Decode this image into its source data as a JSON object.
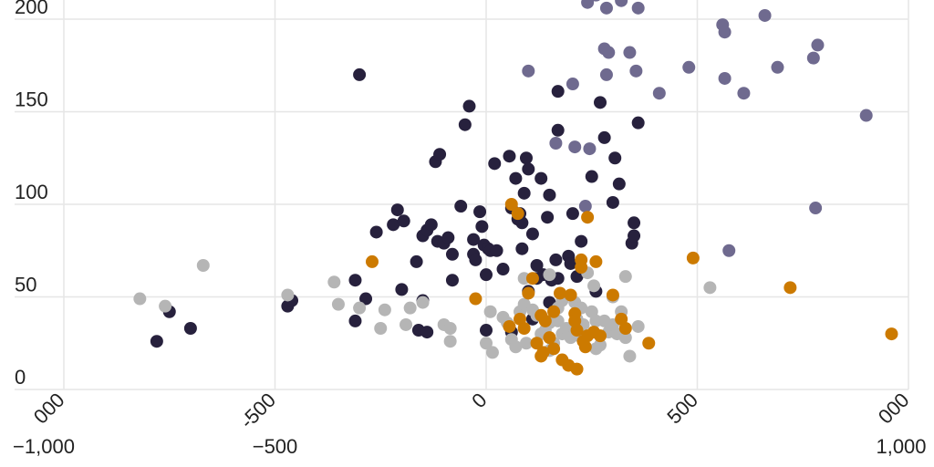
{
  "chart_data": {
    "type": "scatter",
    "title": "",
    "xlabel": "",
    "ylabel": "",
    "xlim": [
      -1000,
      1000
    ],
    "ylim": [
      0,
      205
    ],
    "grid": true,
    "legend": null,
    "x_ticks": [
      -1000,
      -500,
      0,
      500,
      1000
    ],
    "x_tick_labels": [
      "−1,000",
      "−500",
      "0",
      "500",
      "1,000"
    ],
    "x_tick_labels_rotated": [
      "000",
      "-500",
      "0",
      "500",
      "000"
    ],
    "y_ticks": [
      0,
      50,
      100,
      150,
      200
    ],
    "y_tick_labels": [
      "0",
      "50",
      "100",
      "150",
      "200"
    ],
    "series": [
      {
        "name": "series-navy",
        "color": "#27213d",
        "points": [
          [
            -300,
            170
          ],
          [
            -780,
            26
          ],
          [
            -750,
            42
          ],
          [
            -700,
            33
          ],
          [
            -470,
            45
          ],
          [
            -460,
            48
          ],
          [
            -310,
            59
          ],
          [
            -310,
            37
          ],
          [
            -285,
            49
          ],
          [
            -260,
            85
          ],
          [
            -220,
            89
          ],
          [
            -210,
            97
          ],
          [
            -195,
            91
          ],
          [
            -200,
            54
          ],
          [
            -165,
            69
          ],
          [
            -150,
            83
          ],
          [
            -140,
            86
          ],
          [
            -130,
            89
          ],
          [
            -160,
            32
          ],
          [
            -140,
            31
          ],
          [
            -150,
            48
          ],
          [
            -120,
            123
          ],
          [
            -110,
            127
          ],
          [
            -115,
            80
          ],
          [
            -100,
            79
          ],
          [
            -90,
            82
          ],
          [
            -80,
            73
          ],
          [
            -80,
            59
          ],
          [
            -60,
            99
          ],
          [
            -50,
            143
          ],
          [
            -40,
            153
          ],
          [
            -30,
            81
          ],
          [
            -30,
            73
          ],
          [
            -25,
            70
          ],
          [
            -15,
            96
          ],
          [
            -10,
            88
          ],
          [
            -5,
            78
          ],
          [
            0,
            62
          ],
          [
            5,
            76
          ],
          [
            10,
            75
          ],
          [
            20,
            122
          ],
          [
            25,
            75
          ],
          [
            40,
            65
          ],
          [
            55,
            126
          ],
          [
            60,
            98
          ],
          [
            70,
            114
          ],
          [
            75,
            92
          ],
          [
            80,
            95
          ],
          [
            85,
            90
          ],
          [
            85,
            76
          ],
          [
            90,
            106
          ],
          [
            95,
            125
          ],
          [
            100,
            119
          ],
          [
            110,
            84
          ],
          [
            120,
            60
          ],
          [
            130,
            114
          ],
          [
            120,
            67
          ],
          [
            135,
            62
          ],
          [
            145,
            93
          ],
          [
            150,
            105
          ],
          [
            155,
            59
          ],
          [
            165,
            70
          ],
          [
            170,
            60
          ],
          [
            170,
            161
          ],
          [
            170,
            140
          ],
          [
            195,
            72
          ],
          [
            200,
            68
          ],
          [
            205,
            95
          ],
          [
            215,
            61
          ],
          [
            225,
            80
          ],
          [
            250,
            115
          ],
          [
            260,
            53
          ],
          [
            270,
            155
          ],
          [
            280,
            136
          ],
          [
            300,
            101
          ],
          [
            305,
            125
          ],
          [
            315,
            111
          ],
          [
            350,
            90
          ],
          [
            345,
            79
          ],
          [
            350,
            83
          ],
          [
            360,
            144
          ],
          [
            60,
            31
          ],
          [
            110,
            38
          ],
          [
            150,
            47
          ],
          [
            0,
            32
          ],
          [
            100,
            53
          ]
        ]
      },
      {
        "name": "series-purple",
        "color": "#6f6a8f",
        "points": [
          [
            240,
            209
          ],
          [
            260,
            213
          ],
          [
            285,
            206
          ],
          [
            320,
            210
          ],
          [
            360,
            206
          ],
          [
            100,
            172
          ],
          [
            205,
            165
          ],
          [
            280,
            184
          ],
          [
            290,
            182
          ],
          [
            340,
            182
          ],
          [
            355,
            172
          ],
          [
            285,
            170
          ],
          [
            410,
            160
          ],
          [
            480,
            174
          ],
          [
            560,
            197
          ],
          [
            565,
            193
          ],
          [
            610,
            160
          ],
          [
            565,
            168
          ],
          [
            660,
            202
          ],
          [
            690,
            174
          ],
          [
            775,
            179
          ],
          [
            785,
            186
          ],
          [
            900,
            148
          ],
          [
            780,
            98
          ],
          [
            575,
            75
          ],
          [
            165,
            133
          ],
          [
            210,
            131
          ],
          [
            245,
            130
          ],
          [
            235,
            99
          ]
        ]
      },
      {
        "name": "series-orange",
        "color": "#cc7a00",
        "points": [
          [
            -270,
            69
          ],
          [
            -25,
            49
          ],
          [
            60,
            100
          ],
          [
            75,
            95
          ],
          [
            240,
            93
          ],
          [
            490,
            71
          ],
          [
            720,
            55
          ],
          [
            960,
            30
          ],
          [
            100,
            52
          ],
          [
            80,
            38
          ],
          [
            90,
            33
          ],
          [
            110,
            60
          ],
          [
            130,
            40
          ],
          [
            140,
            37
          ],
          [
            150,
            28
          ],
          [
            160,
            42
          ],
          [
            160,
            22
          ],
          [
            175,
            52
          ],
          [
            180,
            16
          ],
          [
            195,
            13
          ],
          [
            200,
            51
          ],
          [
            210,
            41
          ],
          [
            210,
            37
          ],
          [
            215,
            32
          ],
          [
            215,
            11
          ],
          [
            225,
            70
          ],
          [
            225,
            66
          ],
          [
            230,
            26
          ],
          [
            235,
            23
          ],
          [
            240,
            29
          ],
          [
            255,
            31
          ],
          [
            260,
            69
          ],
          [
            270,
            29
          ],
          [
            300,
            51
          ],
          [
            320,
            38
          ],
          [
            330,
            33
          ],
          [
            385,
            25
          ],
          [
            55,
            34
          ],
          [
            130,
            18
          ],
          [
            135,
            20
          ],
          [
            120,
            25
          ]
        ]
      },
      {
        "name": "series-gray",
        "color": "#b5b5b5",
        "points": [
          [
            -820,
            49
          ],
          [
            -760,
            45
          ],
          [
            -670,
            67
          ],
          [
            -470,
            51
          ],
          [
            -360,
            58
          ],
          [
            -350,
            46
          ],
          [
            -300,
            44
          ],
          [
            -250,
            33
          ],
          [
            -240,
            43
          ],
          [
            -190,
            35
          ],
          [
            -180,
            44
          ],
          [
            -150,
            47
          ],
          [
            -100,
            35
          ],
          [
            -85,
            33
          ],
          [
            -85,
            26
          ],
          [
            0,
            25
          ],
          [
            10,
            42
          ],
          [
            15,
            20
          ],
          [
            40,
            39
          ],
          [
            50,
            36
          ],
          [
            60,
            27
          ],
          [
            70,
            23
          ],
          [
            80,
            42
          ],
          [
            90,
            46
          ],
          [
            95,
            25
          ],
          [
            110,
            43
          ],
          [
            120,
            40
          ],
          [
            130,
            30
          ],
          [
            140,
            32
          ],
          [
            150,
            36
          ],
          [
            150,
            21
          ],
          [
            160,
            25
          ],
          [
            170,
            37
          ],
          [
            170,
            44
          ],
          [
            180,
            30
          ],
          [
            180,
            48
          ],
          [
            190,
            33
          ],
          [
            200,
            28
          ],
          [
            210,
            47
          ],
          [
            215,
            38
          ],
          [
            220,
            29
          ],
          [
            225,
            44
          ],
          [
            230,
            35
          ],
          [
            240,
            63
          ],
          [
            250,
            42
          ],
          [
            260,
            37
          ],
          [
            260,
            22
          ],
          [
            270,
            24
          ],
          [
            280,
            37
          ],
          [
            290,
            31
          ],
          [
            300,
            35
          ],
          [
            300,
            50
          ],
          [
            310,
            30
          ],
          [
            320,
            42
          ],
          [
            330,
            61
          ],
          [
            330,
            28
          ],
          [
            340,
            18
          ],
          [
            360,
            34
          ],
          [
            530,
            55
          ],
          [
            255,
            56
          ],
          [
            90,
            60
          ],
          [
            150,
            62
          ]
        ]
      }
    ]
  }
}
